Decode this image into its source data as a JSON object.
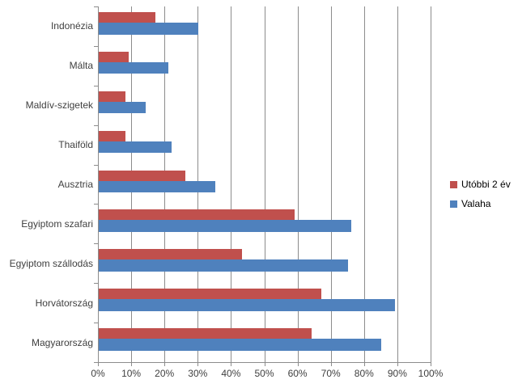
{
  "chart_data": {
    "type": "bar",
    "orientation": "horizontal",
    "title": "",
    "categories": [
      "Indonézia",
      "Málta",
      "Maldív-szigetek",
      "Thaiföld",
      "Ausztria",
      "Egyiptom szafari",
      "Egyiptom szállodás",
      "Horvátország",
      "Magyarország"
    ],
    "series": [
      {
        "name": "Utóbbi 2 év",
        "color": "#C0504D",
        "values": [
          17,
          9,
          8,
          8,
          26,
          59,
          43,
          67,
          64
        ]
      },
      {
        "name": "Valaha",
        "color": "#4F81BD",
        "values": [
          30,
          21,
          14,
          22,
          35,
          76,
          75,
          89,
          85
        ]
      }
    ],
    "x_axis": {
      "min": 0,
      "max": 100,
      "tick_step": 10,
      "tick_labels": [
        "0%",
        "10%",
        "20%",
        "30%",
        "40%",
        "50%",
        "60%",
        "70%",
        "80%",
        "90%",
        "100%"
      ]
    },
    "y_axis": {
      "label": ""
    },
    "legend": {
      "position": "right"
    },
    "grid": true,
    "colors": {
      "gridline": "#8C8C8C",
      "axis_text": "#3F3F3F",
      "background": "#FFFFFF"
    }
  }
}
